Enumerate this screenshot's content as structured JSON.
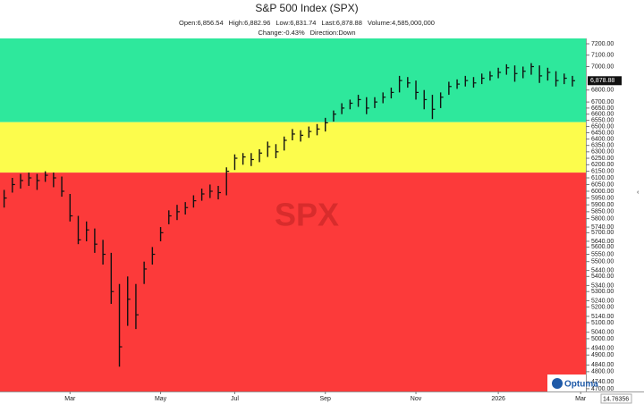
{
  "chart_data": {
    "type": "ohlc",
    "title": "S&P 500 Index (SPX)",
    "header": [
      {
        "label": "Open:",
        "value": "6,856.54"
      },
      {
        "label": "High:",
        "value": "6,882.96"
      },
      {
        "label": "Low:",
        "value": "6,831.74"
      },
      {
        "label": "Last:",
        "value": "6,878.88"
      },
      {
        "label": "Volume:",
        "value": "4,585,000,000"
      }
    ],
    "header2": [
      {
        "label": "Change:",
        "value": "-0.43%"
      },
      {
        "label": "Direction:",
        "value": "Down"
      }
    ],
    "watermark": "SPX",
    "brand": "Optuma",
    "footer_value": "14.76356",
    "categories": [
      null,
      null,
      null,
      null,
      null,
      null,
      null,
      null,
      "Mar",
      null,
      null,
      null,
      null,
      null,
      null,
      null,
      null,
      null,
      null,
      "May",
      null,
      null,
      null,
      null,
      null,
      null,
      null,
      null,
      "Jul",
      null,
      null,
      null,
      null,
      null,
      null,
      null,
      null,
      null,
      null,
      "Sep",
      null,
      null,
      null,
      null,
      null,
      null,
      null,
      null,
      null,
      null,
      "Nov",
      null,
      null,
      null,
      null,
      null,
      null,
      null,
      null,
      null,
      "2026",
      null,
      null,
      null,
      null,
      null,
      null,
      null,
      null,
      null,
      "Mar",
      null
    ],
    "high": [
      6010,
      6100,
      6130,
      6140,
      6130,
      6150,
      6140,
      6110,
      5980,
      5820,
      5780,
      5730,
      5650,
      5560,
      5350,
      5400,
      5350,
      5500,
      5600,
      5740,
      5860,
      5900,
      5920,
      5970,
      6020,
      6050,
      6040,
      6180,
      6280,
      6290,
      6290,
      6320,
      6380,
      6360,
      6420,
      6480,
      6470,
      6500,
      6520,
      6570,
      6630,
      6690,
      6720,
      6760,
      6740,
      6740,
      6780,
      6820,
      6920,
      6910,
      6880,
      6800,
      6760,
      6780,
      6870,
      6890,
      6920,
      6910,
      6940,
      6960,
      6990,
      7020,
      7010,
      7000,
      7030,
      7010,
      6990,
      6960,
      6940,
      6920,
      null,
      null
    ],
    "low": [
      5880,
      5990,
      6020,
      6040,
      6010,
      6070,
      6030,
      5960,
      5780,
      5620,
      5640,
      5560,
      5480,
      5220,
      4830,
      5080,
      5060,
      5350,
      5480,
      5640,
      5760,
      5790,
      5830,
      5880,
      5930,
      5950,
      5940,
      5970,
      6160,
      6200,
      6190,
      6220,
      6260,
      6250,
      6310,
      6390,
      6380,
      6410,
      6430,
      6460,
      6540,
      6600,
      6640,
      6660,
      6600,
      6650,
      6690,
      6730,
      6780,
      6820,
      6720,
      6640,
      6560,
      6650,
      6760,
      6810,
      6830,
      6820,
      6850,
      6880,
      6900,
      6930,
      6870,
      6900,
      6930,
      6860,
      6880,
      6830,
      6850,
      6830,
      null,
      null
    ],
    "close": [
      5950,
      6050,
      6080,
      6100,
      6080,
      6120,
      6100,
      6000,
      5820,
      5650,
      5720,
      5620,
      5550,
      5300,
      4950,
      5250,
      5150,
      5450,
      5550,
      5700,
      5820,
      5850,
      5880,
      5930,
      5980,
      6000,
      5990,
      6150,
      6250,
      6260,
      6240,
      6290,
      6340,
      6300,
      6390,
      6440,
      6430,
      6460,
      6480,
      6530,
      6600,
      6650,
      6690,
      6720,
      6650,
      6700,
      6740,
      6780,
      6880,
      6860,
      6780,
      6720,
      6640,
      6740,
      6830,
      6850,
      6880,
      6860,
      6900,
      6920,
      6950,
      6990,
      6940,
      6960,
      7000,
      6920,
      6950,
      6880,
      6900,
      6878.88,
      null,
      null
    ],
    "color": "#111111",
    "log_scale": true,
    "zones": [
      {
        "from": 6535,
        "to": 7248,
        "color": "#2ee89c"
      },
      {
        "from": 6140,
        "to": 6535,
        "color": "#fcfc4c"
      },
      {
        "from": 4684,
        "to": 6140,
        "color": "#fc3a3a"
      }
    ],
    "ylim": [
      4684,
      7248
    ],
    "yticks": [
      {
        "value": 7200,
        "label": "7200.00"
      },
      {
        "value": 7100,
        "label": "7100.00"
      },
      {
        "value": 7000,
        "label": "7000.00"
      },
      {
        "value": 6800,
        "label": "6800.00"
      },
      {
        "value": 6700,
        "label": "6700.00"
      },
      {
        "value": 6650,
        "label": "6650.00"
      },
      {
        "value": 6600,
        "label": "6600.00"
      },
      {
        "value": 6550,
        "label": "6550.00"
      },
      {
        "value": 6500,
        "label": "6500.00"
      },
      {
        "value": 6450,
        "label": "6450.00"
      },
      {
        "value": 6400,
        "label": "6400.00"
      },
      {
        "value": 6350,
        "label": "6350.00"
      },
      {
        "value": 6300,
        "label": "6300.00"
      },
      {
        "value": 6250,
        "label": "6250.00"
      },
      {
        "value": 6200,
        "label": "6200.00"
      },
      {
        "value": 6150,
        "label": "6150.00"
      },
      {
        "value": 6100,
        "label": "6100.00"
      },
      {
        "value": 6050,
        "label": "6050.00"
      },
      {
        "value": 6000,
        "label": "6000.00"
      },
      {
        "value": 5950,
        "label": "5950.00"
      },
      {
        "value": 5900,
        "label": "5900.00"
      },
      {
        "value": 5850,
        "label": "5850.00"
      },
      {
        "value": 5800,
        "label": "5800.00"
      },
      {
        "value": 5740,
        "label": "5740.00"
      },
      {
        "value": 5700,
        "label": "5700.00"
      },
      {
        "value": 5640,
        "label": "5640.00"
      },
      {
        "value": 5600,
        "label": "5600.00"
      },
      {
        "value": 5550,
        "label": "5550.00"
      },
      {
        "value": 5500,
        "label": "5500.00"
      },
      {
        "value": 5440,
        "label": "5440.00"
      },
      {
        "value": 5400,
        "label": "5400.00"
      },
      {
        "value": 5340,
        "label": "5340.00"
      },
      {
        "value": 5300,
        "label": "5300.00"
      },
      {
        "value": 5240,
        "label": "5240.00"
      },
      {
        "value": 5200,
        "label": "5200.00"
      },
      {
        "value": 5140,
        "label": "5140.00"
      },
      {
        "value": 5100,
        "label": "5100.00"
      },
      {
        "value": 5040,
        "label": "5040.00"
      },
      {
        "value": 5000,
        "label": "5000.00"
      },
      {
        "value": 4940,
        "label": "4940.00"
      },
      {
        "value": 4900,
        "label": "4900.00"
      },
      {
        "value": 4840,
        "label": "4840.00"
      },
      {
        "value": 4800,
        "label": "4800.00"
      },
      {
        "value": 4740,
        "label": "4740.00"
      },
      {
        "value": 4700,
        "label": "4700.00"
      }
    ]
  }
}
